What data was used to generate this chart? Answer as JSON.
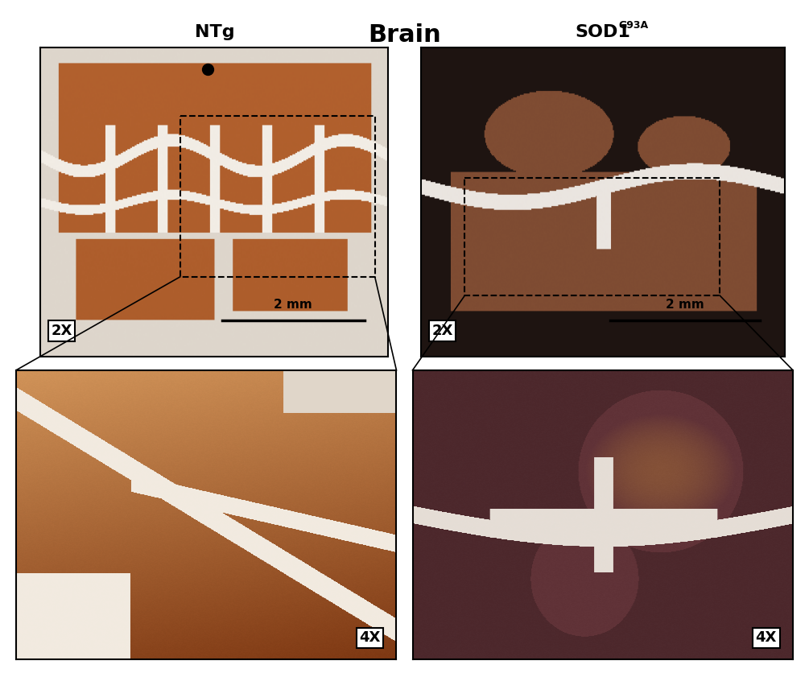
{
  "title": "Brain",
  "title_fontsize": 22,
  "title_fontweight": "bold",
  "label_ntg": "NTg",
  "label_sod1": "SOD1",
  "label_sod1_super": "G93A",
  "label_fontsize": 16,
  "label_fontweight": "bold",
  "zoom_2x": "2X",
  "zoom_4x": "4X",
  "zoom_label_fontsize": 13,
  "zoom_label_fontweight": "bold",
  "scalebar_text": "2 mm",
  "scalebar_fontsize": 11,
  "background_color": "#ffffff",
  "border_color": "#000000",
  "dashed_box_color": "#000000",
  "line_color": "#000000",
  "ntg_2x_color_main": "#c87941",
  "ntg_2x_color_light": "#e8b080",
  "sod1_2x_color_main": "#8b4513",
  "sod1_2x_color_dark": "#5c2a0a",
  "ntg_4x_color_main": "#c0622a",
  "sod1_4x_color_main": "#7a3520"
}
